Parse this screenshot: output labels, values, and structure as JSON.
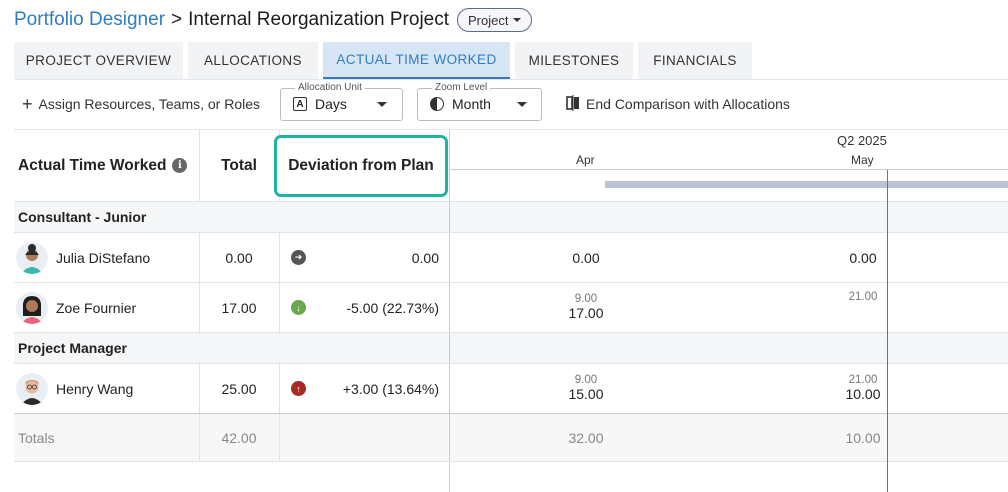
{
  "header": {
    "breadcrumb_parent": "Portfolio Designer",
    "separator": ">",
    "title": "Internal Reorganization Project",
    "type_label": "Project"
  },
  "tabs": [
    {
      "label": "PROJECT OVERVIEW"
    },
    {
      "label": "ALLOCATIONS"
    },
    {
      "label": "ACTUAL TIME WORKED",
      "active": true
    },
    {
      "label": "MILESTONES"
    },
    {
      "label": "FINANCIALS"
    }
  ],
  "toolbar": {
    "assign_label": "Assign Resources, Teams, or Roles",
    "allocation_unit": {
      "legend": "Allocation Unit",
      "value": "Days"
    },
    "zoom_level": {
      "legend": "Zoom Level",
      "value": "Month"
    },
    "end_comparison_label": "End Comparison with Allocations"
  },
  "grid": {
    "header": {
      "title": "Actual Time Worked",
      "total": "Total",
      "deviation": "Deviation from Plan",
      "quarter": "Q2 2025",
      "months": [
        "Apr",
        "May"
      ]
    },
    "groups": [
      {
        "label": "Consultant - Junior",
        "rows": [
          {
            "name": "Julia DiStefano",
            "total": "0.00",
            "deviation_dir": "right",
            "deviation": "0.00",
            "apr_plan": "",
            "apr_actual": "0.00",
            "may_plan": "",
            "may_actual": "0.00"
          },
          {
            "name": "Zoe Fournier",
            "total": "17.00",
            "deviation_dir": "down",
            "deviation": "-5.00 (22.73%)",
            "apr_plan": "9.00",
            "apr_actual": "17.00",
            "may_plan": "21.00",
            "may_actual": ""
          }
        ]
      },
      {
        "label": "Project Manager",
        "rows": [
          {
            "name": "Henry Wang",
            "total": "25.00",
            "deviation_dir": "up",
            "deviation": "+3.00 (13.64%)",
            "apr_plan": "9.00",
            "apr_actual": "15.00",
            "may_plan": "21.00",
            "may_actual": "10.00"
          }
        ]
      }
    ],
    "totals": {
      "label": "Totals",
      "total": "42.00",
      "apr": "32.00",
      "may": "10.00"
    }
  },
  "colors": {
    "accent": "#2f7dc0",
    "highlight_border": "#1fb3a6",
    "today_line": "#c0504d",
    "deviation_neutral": "#555555",
    "deviation_under": "#6aa84f",
    "deviation_over": "#a52a22",
    "timeline_bar": "#b8c4d3"
  },
  "icons": {
    "assign": "plus-icon",
    "allocation_unit": "letter-a-box-icon",
    "zoom_level": "half-circle-icon",
    "end_comparison": "compare-icon",
    "info": "info-icon"
  }
}
